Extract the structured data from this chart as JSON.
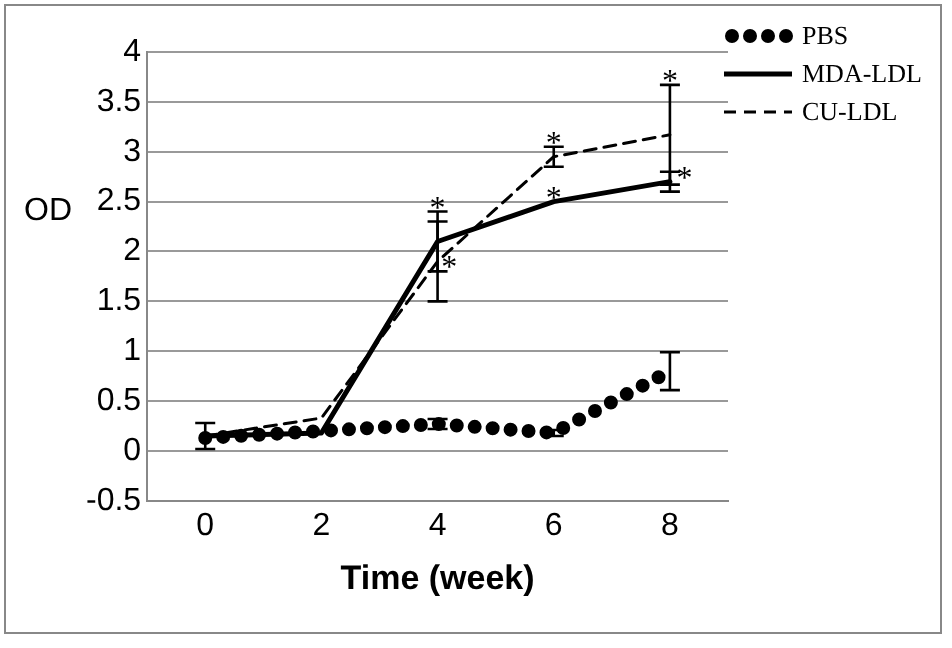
{
  "chart_data": {
    "type": "line",
    "xlabel": "Time (week)",
    "ylabel": "OD",
    "x": [
      0,
      2,
      4,
      6,
      8
    ],
    "xlim": [
      -1,
      9
    ],
    "xticks": [
      0,
      2,
      4,
      6,
      8
    ],
    "ylim": [
      -0.5,
      4
    ],
    "yticks": [
      -0.5,
      0,
      0.5,
      1,
      1.5,
      2,
      2.5,
      3,
      3.5,
      4
    ],
    "grid": "y",
    "legend": "top right",
    "marker": "none",
    "series": [
      {
        "name": "PBS",
        "color": "#000000",
        "line_style": "dotted",
        "values": [
          0.13,
          0.2,
          0.27,
          0.18,
          0.8
        ],
        "errors": [
          null,
          null,
          0.05,
          0.03,
          0.19
        ]
      },
      {
        "name": "MDA-LDL",
        "color": "#000000",
        "line_style": "solid",
        "values": [
          0.15,
          0.18,
          2.1,
          2.5,
          2.7
        ],
        "errors": [
          0.13,
          null,
          0.3,
          null,
          0.1
        ]
      },
      {
        "name": "CU-LDL",
        "color": "#000000",
        "line_style": "dashed",
        "values": [
          0.15,
          0.33,
          1.9,
          2.95,
          3.17
        ],
        "errors": [
          null,
          null,
          0.4,
          0.1,
          0.5
        ]
      }
    ],
    "annotations": [
      {
        "text": "*",
        "x": 4,
        "y": 2.4
      },
      {
        "text": "*",
        "x": 4.2,
        "y": 1.8
      },
      {
        "text": "*",
        "x": 6,
        "y": 3.05
      },
      {
        "text": "*",
        "x": 6,
        "y": 2.5
      },
      {
        "text": "*",
        "x": 8,
        "y": 3.67
      },
      {
        "text": "*",
        "x": 8.25,
        "y": 2.7
      }
    ]
  }
}
